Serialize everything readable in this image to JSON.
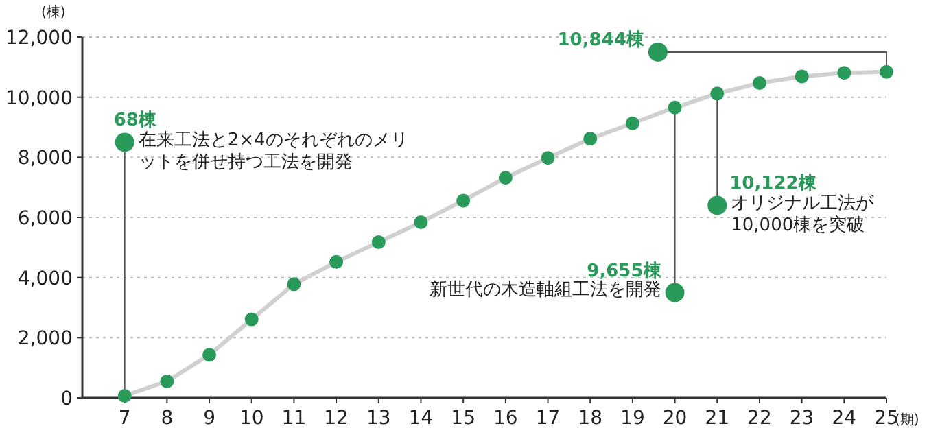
{
  "chart_data": {
    "type": "line",
    "xlabel": "(期)",
    "ylabel": "(棟)",
    "categories": [
      "7",
      "8",
      "9",
      "10",
      "11",
      "12",
      "13",
      "14",
      "15",
      "16",
      "17",
      "18",
      "19",
      "20",
      "21",
      "22",
      "23",
      "24",
      "25"
    ],
    "series": [
      {
        "color": "#2a9a5a",
        "values": [
          68,
          550,
          1430,
          2610,
          3780,
          4520,
          5180,
          5840,
          6560,
          7320,
          7980,
          8620,
          9130,
          9655,
          10122,
          10470,
          10690,
          10810,
          10844
        ]
      }
    ],
    "ylim": [
      0,
      12000
    ],
    "yticks": [
      {
        "value": 0,
        "label": "0"
      },
      {
        "value": 2000,
        "label": "2,000"
      },
      {
        "value": 4000,
        "label": "4,000"
      },
      {
        "value": 6000,
        "label": "6,000"
      },
      {
        "value": 8000,
        "label": "8,000"
      },
      {
        "value": 10000,
        "label": "10,000"
      },
      {
        "value": 12000,
        "label": "12,000"
      }
    ],
    "grid": "y",
    "marker": "circle",
    "annotations": [
      {
        "text": "68棟",
        "x": "7",
        "y": 68
      },
      "在来工法と2×4のそれぞれのメリットを併せ持つ工法を開発",
      {
        "text": "9,655棟",
        "x": "20",
        "y": 9655
      },
      "新世代の木造軸組工法を開発",
      {
        "text": "10,122棟",
        "x": "21",
        "y": 10122
      },
      "オリジナル工法が10,000棟を突破",
      {
        "text": "10,844棟",
        "x": "25",
        "y": 10844
      }
    ]
  }
}
